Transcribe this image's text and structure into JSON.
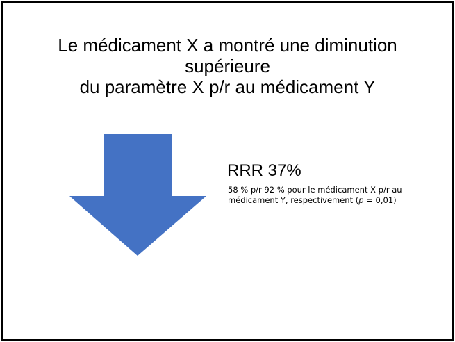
{
  "slide": {
    "title_lines": [
      "Le médicament X a montré une diminution",
      "supérieure",
      "du paramètre X p/r au médicament Y"
    ],
    "arrow": {
      "icon": "down-arrow-icon",
      "color": "#4472C4"
    },
    "result_heading": "RRR 37%",
    "result_detail_line1": "58 % p/r 92 % pour le médicament X p/r au",
    "result_detail_line2_before": "médicament Y, respectivement (",
    "result_detail_p": "p",
    "result_detail_line2_after": " = 0,01)"
  }
}
